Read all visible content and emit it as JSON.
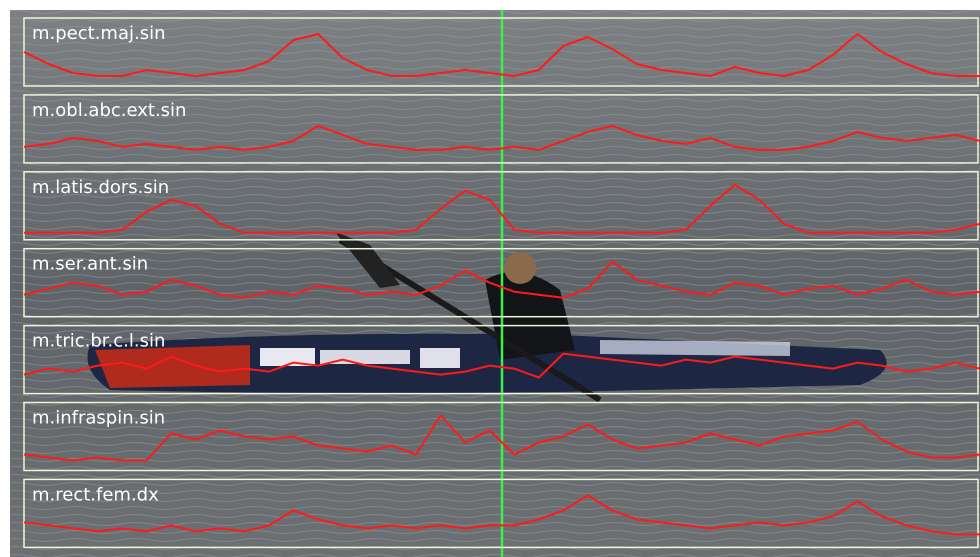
{
  "chart_data": [
    {
      "type": "line",
      "title": "m.pect.maj.sin",
      "color": "#ff1a1a",
      "ylim": [
        0,
        1
      ],
      "values": [
        0.5,
        0.3,
        0.15,
        0.1,
        0.1,
        0.2,
        0.15,
        0.1,
        0.15,
        0.2,
        0.35,
        0.7,
        0.8,
        0.4,
        0.2,
        0.1,
        0.1,
        0.15,
        0.2,
        0.15,
        0.1,
        0.2,
        0.6,
        0.75,
        0.55,
        0.3,
        0.2,
        0.15,
        0.1,
        0.25,
        0.15,
        0.1,
        0.2,
        0.45,
        0.8,
        0.5,
        0.3,
        0.15,
        0.1,
        0.1
      ]
    },
    {
      "type": "line",
      "title": "m.obl.abc.ext.sin",
      "color": "#ff1a1a",
      "ylim": [
        0,
        1
      ],
      "values": [
        0.2,
        0.25,
        0.35,
        0.3,
        0.2,
        0.25,
        0.2,
        0.15,
        0.2,
        0.15,
        0.2,
        0.3,
        0.55,
        0.4,
        0.25,
        0.2,
        0.15,
        0.15,
        0.2,
        0.15,
        0.2,
        0.15,
        0.3,
        0.45,
        0.55,
        0.4,
        0.3,
        0.25,
        0.35,
        0.2,
        0.15,
        0.15,
        0.2,
        0.3,
        0.45,
        0.35,
        0.3,
        0.35,
        0.4,
        0.3
      ]
    },
    {
      "type": "line",
      "title": "m.latis.dors.sin",
      "color": "#ff1a1a",
      "ylim": [
        0,
        1
      ],
      "values": [
        0.05,
        0.05,
        0.05,
        0.05,
        0.1,
        0.4,
        0.6,
        0.5,
        0.2,
        0.05,
        0.05,
        0.05,
        0.05,
        0.05,
        0.05,
        0.05,
        0.1,
        0.45,
        0.75,
        0.6,
        0.1,
        0.05,
        0.05,
        0.05,
        0.05,
        0.05,
        0.05,
        0.1,
        0.5,
        0.85,
        0.6,
        0.2,
        0.05,
        0.05,
        0.05,
        0.05,
        0.05,
        0.05,
        0.1,
        0.2
      ]
    },
    {
      "type": "line",
      "title": "m.ser.ant.sin",
      "color": "#ff1a1a",
      "ylim": [
        0,
        1
      ],
      "values": [
        0.3,
        0.4,
        0.5,
        0.45,
        0.3,
        0.35,
        0.55,
        0.45,
        0.3,
        0.25,
        0.35,
        0.3,
        0.45,
        0.4,
        0.3,
        0.35,
        0.3,
        0.45,
        0.7,
        0.5,
        0.35,
        0.3,
        0.25,
        0.4,
        0.85,
        0.55,
        0.45,
        0.35,
        0.3,
        0.5,
        0.45,
        0.3,
        0.4,
        0.45,
        0.3,
        0.4,
        0.55,
        0.35,
        0.3,
        0.35
      ]
    },
    {
      "type": "line",
      "title": "m.tric.br.c.l.sin",
      "color": "#ff1a1a",
      "ylim": [
        0,
        1
      ],
      "values": [
        0.25,
        0.35,
        0.3,
        0.4,
        0.45,
        0.35,
        0.55,
        0.4,
        0.3,
        0.35,
        0.3,
        0.45,
        0.4,
        0.5,
        0.4,
        0.35,
        0.3,
        0.25,
        0.3,
        0.4,
        0.35,
        0.2,
        0.6,
        0.55,
        0.5,
        0.45,
        0.4,
        0.5,
        0.45,
        0.55,
        0.5,
        0.45,
        0.4,
        0.35,
        0.45,
        0.4,
        0.3,
        0.35,
        0.45,
        0.35
      ]
    },
    {
      "type": "line",
      "title": "m.infraspin.sin",
      "color": "#ff1a1a",
      "ylim": [
        0,
        1
      ],
      "values": [
        0.2,
        0.15,
        0.1,
        0.15,
        0.1,
        0.1,
        0.55,
        0.45,
        0.6,
        0.5,
        0.45,
        0.5,
        0.35,
        0.3,
        0.25,
        0.35,
        0.2,
        0.85,
        0.4,
        0.6,
        0.2,
        0.4,
        0.5,
        0.7,
        0.45,
        0.3,
        0.35,
        0.4,
        0.55,
        0.45,
        0.35,
        0.5,
        0.55,
        0.6,
        0.75,
        0.45,
        0.25,
        0.15,
        0.15,
        0.2
      ]
    },
    {
      "type": "line",
      "title": "m.rect.fem.dx",
      "color": "#ff1a1a",
      "ylim": [
        0,
        1
      ],
      "values": [
        0.35,
        0.3,
        0.25,
        0.2,
        0.25,
        0.2,
        0.3,
        0.2,
        0.25,
        0.2,
        0.3,
        0.55,
        0.4,
        0.3,
        0.25,
        0.3,
        0.25,
        0.3,
        0.25,
        0.3,
        0.3,
        0.4,
        0.55,
        0.8,
        0.55,
        0.4,
        0.35,
        0.3,
        0.25,
        0.3,
        0.35,
        0.3,
        0.35,
        0.45,
        0.7,
        0.45,
        0.3,
        0.2,
        0.15,
        0.15
      ]
    }
  ]
}
